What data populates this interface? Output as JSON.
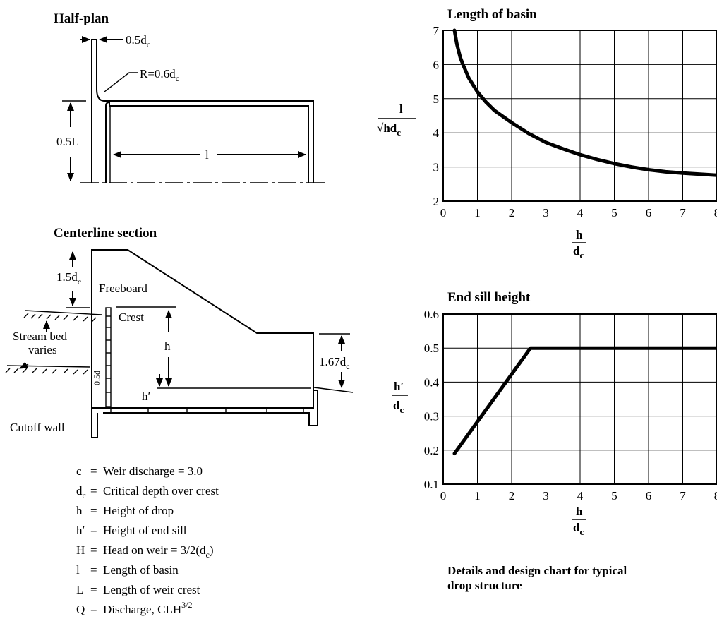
{
  "half_plan": {
    "title": "Half-plan",
    "dim_top_main": "0.5d",
    "dim_top_sub": "c",
    "radius_main": "R=0.6d",
    "radius_sub": "c",
    "dim_left": "0.5L",
    "dim_basin": "l"
  },
  "section": {
    "title": "Centerline section",
    "freeboard_main": "1.5d",
    "freeboard_sub": "c",
    "freeboard_label": "Freeboard",
    "crest_label": "Crest",
    "streambed_line1": "Stream bed",
    "streambed_line2": "varies",
    "h_label": "h",
    "h_prime_label": "h′",
    "sill_main": "1.67d",
    "sill_sub": "c",
    "wall_label": "0.5d",
    "cutoff_label": "Cutoff wall"
  },
  "legend": [
    {
      "sym": "c",
      "sym_sub": "",
      "eq": "=",
      "text": "Weir discharge = 3.0",
      "text_sub": "",
      "text_tail": "",
      "text_sup": ""
    },
    {
      "sym": "d",
      "sym_sub": "c",
      "eq": "=",
      "text": "Critical depth over crest",
      "text_sub": "",
      "text_tail": "",
      "text_sup": ""
    },
    {
      "sym": "h",
      "sym_sub": "",
      "eq": "=",
      "text": "Height of drop",
      "text_sub": "",
      "text_tail": "",
      "text_sup": ""
    },
    {
      "sym": "h′",
      "sym_sub": "",
      "eq": "=",
      "text": "Height of end sill",
      "text_sub": "",
      "text_tail": "",
      "text_sup": ""
    },
    {
      "sym": "H",
      "sym_sub": "",
      "eq": "=",
      "text": "Head on weir = 3/2(d",
      "text_sub": "c",
      "text_tail": ")",
      "text_sup": ""
    },
    {
      "sym": "l",
      "sym_sub": "",
      "eq": "=",
      "text": "Length of basin",
      "text_sub": "",
      "text_tail": "",
      "text_sup": ""
    },
    {
      "sym": "L",
      "sym_sub": "",
      "eq": "=",
      "text": "Length of weir crest",
      "text_sub": "",
      "text_tail": "",
      "text_sup": ""
    },
    {
      "sym": "Q",
      "sym_sub": "",
      "eq": "=",
      "text": "Discharge, CLH",
      "text_sub": "",
      "text_tail": "",
      "text_sup": "3/2"
    }
  ],
  "chart_data": [
    {
      "type": "line",
      "title": "Length of basin",
      "xlabel_num": "h",
      "xlabel_den": "d",
      "xlabel_den_sub": "c",
      "ylabel_num": "l",
      "ylabel_den": "√hd",
      "ylabel_den_sub": "c",
      "xlim": [
        0,
        8
      ],
      "ylim": [
        2,
        7
      ],
      "xticks": [
        0,
        1,
        2,
        3,
        4,
        5,
        6,
        7,
        8
      ],
      "yticks": [
        2,
        3,
        4,
        5,
        6,
        7
      ],
      "grid": true,
      "series": [
        {
          "x": [
            0.33,
            0.4,
            0.5,
            0.6,
            0.75,
            1.0,
            1.25,
            1.5,
            2.0,
            2.5,
            3.0,
            3.5,
            4.0,
            4.5,
            5.0,
            5.5,
            6.0,
            6.5,
            7.0,
            7.5,
            8.0
          ],
          "y": [
            7.0,
            6.6,
            6.2,
            5.95,
            5.6,
            5.2,
            4.9,
            4.65,
            4.3,
            3.98,
            3.72,
            3.53,
            3.36,
            3.22,
            3.1,
            3.0,
            2.92,
            2.86,
            2.82,
            2.79,
            2.76
          ]
        }
      ]
    },
    {
      "type": "line",
      "title": "End sill height",
      "xlabel_num": "h",
      "xlabel_den": "d",
      "xlabel_den_sub": "c",
      "ylabel_num": "h′",
      "ylabel_den": "d",
      "ylabel_den_sub": "c",
      "xlim": [
        0,
        8
      ],
      "ylim": [
        0.1,
        0.6
      ],
      "xticks": [
        0,
        1,
        2,
        3,
        4,
        5,
        6,
        7,
        8
      ],
      "yticks": [
        "0.1",
        "0.2",
        "0.3",
        "0.4",
        "0.5",
        "0.6"
      ],
      "grid": true,
      "series": [
        {
          "x": [
            0.33,
            2.55,
            8.0
          ],
          "y": [
            0.19,
            0.5,
            0.5
          ]
        }
      ]
    }
  ],
  "caption_line1": "Details and design chart for typical",
  "caption_line2": "drop structure"
}
